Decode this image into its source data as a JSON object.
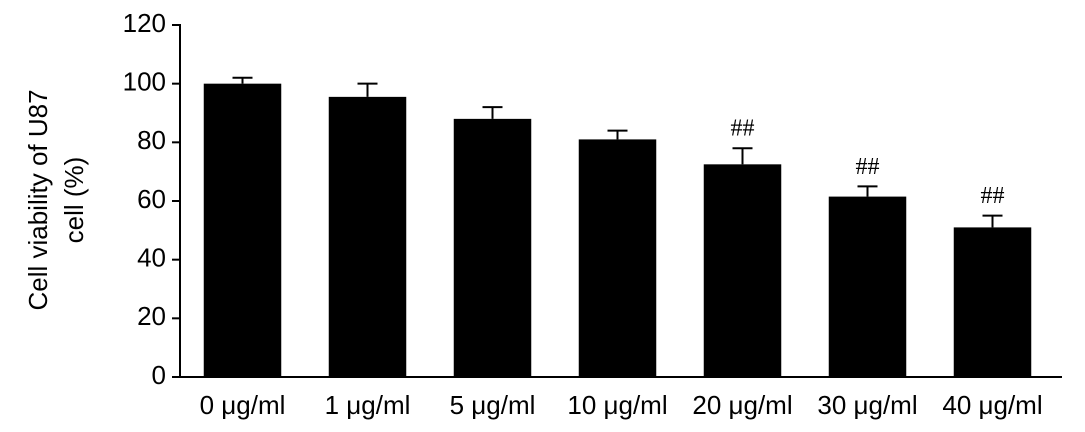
{
  "chart_data": {
    "type": "bar",
    "ylabel": [
      "Cell viability of U87",
      "cell (%)"
    ],
    "categories": [
      "0 μg/ml",
      "1 μg/ml",
      "5 μg/ml",
      "10 μg/ml",
      "20 μg/ml",
      "30 μg/ml",
      "40 μg/ml"
    ],
    "values": [
      100,
      95.5,
      88,
      81,
      72.5,
      61.5,
      51
    ],
    "errors": [
      2,
      4.5,
      4,
      3,
      5.5,
      3.5,
      4
    ],
    "annotations": [
      null,
      null,
      null,
      null,
      "##",
      "##",
      "##"
    ],
    "color": "#000000",
    "ylim": [
      0,
      120
    ],
    "yticks": [
      0,
      20,
      40,
      60,
      80,
      100,
      120
    ],
    "grid": false
  }
}
